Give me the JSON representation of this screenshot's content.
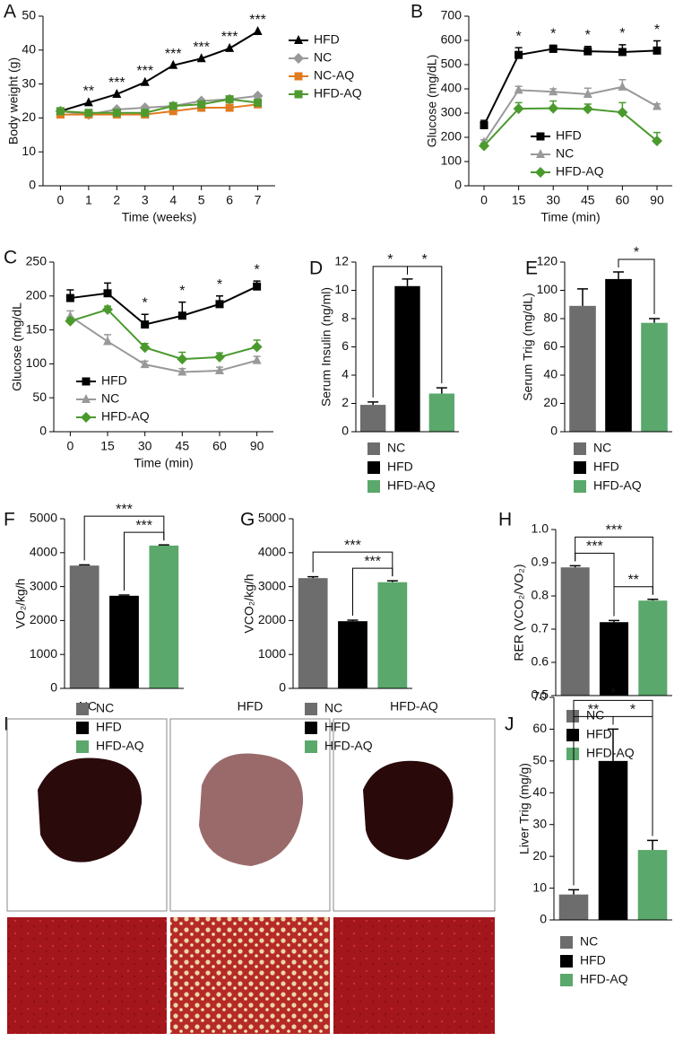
{
  "chart_data": [
    {
      "type": "line",
      "panel": "A",
      "x_label": "Time (weeks)",
      "y_label": "Body weight (g)",
      "categories": [
        "0",
        "1",
        "2",
        "3",
        "4",
        "5",
        "6",
        "7"
      ],
      "ylim": [
        0,
        50
      ],
      "yticks": [
        0,
        10,
        20,
        30,
        40,
        50
      ],
      "annotations": [
        null,
        "**",
        "***",
        "***",
        "***",
        "***",
        "***",
        "***"
      ],
      "series": [
        {
          "name": "HFD",
          "color": "#000000",
          "marker": "triangle",
          "values": [
            22,
            24.5,
            27,
            30.5,
            35.5,
            37.5,
            40.5,
            45.5
          ]
        },
        {
          "name": "NC",
          "color": "#999999",
          "marker": "diamond",
          "values": [
            22,
            21,
            22.5,
            23,
            23.5,
            25,
            25.5,
            26.5
          ]
        },
        {
          "name": "NC-AQ",
          "color": "#e07b20",
          "marker": "square",
          "values": [
            21,
            21,
            21,
            21,
            22,
            23,
            23,
            24
          ]
        },
        {
          "name": "HFD-AQ",
          "color": "#4e9a2e",
          "marker": "square",
          "values": [
            22,
            21.5,
            21.5,
            21.5,
            23.5,
            24,
            25.5,
            24.5
          ]
        }
      ]
    },
    {
      "type": "line",
      "panel": "B",
      "x_label": "Time (min)",
      "y_label": "Glucose (mg/dL)",
      "categories": [
        "0",
        "15",
        "30",
        "45",
        "60",
        "90"
      ],
      "ylim": [
        0,
        700
      ],
      "yticks": [
        0,
        100,
        200,
        300,
        400,
        500,
        600,
        700
      ],
      "annotations": [
        null,
        "*",
        "*",
        "*",
        "*",
        "*"
      ],
      "series": [
        {
          "name": "HFD",
          "color": "#000000",
          "marker": "square",
          "values": [
            250,
            540,
            565,
            555,
            552,
            558
          ],
          "errors": [
            20,
            30,
            15,
            20,
            30,
            40
          ]
        },
        {
          "name": "NC",
          "color": "#999999",
          "marker": "triangle",
          "values": [
            180,
            395,
            388,
            378,
            408,
            328
          ],
          "errors": [
            10,
            15,
            12,
            25,
            30,
            10
          ]
        },
        {
          "name": "HFD-AQ",
          "color": "#4a9a2e",
          "marker": "diamond",
          "values": [
            165,
            318,
            320,
            317,
            303,
            185
          ],
          "errors": [
            10,
            25,
            30,
            20,
            40,
            35
          ]
        }
      ]
    },
    {
      "type": "line",
      "panel": "C",
      "x_label": "Time (min)",
      "y_label": "Glucose (mg/dL",
      "categories": [
        "0",
        "15",
        "30",
        "45",
        "60",
        "90"
      ],
      "ylim": [
        0,
        250
      ],
      "yticks": [
        0,
        50,
        100,
        150,
        200,
        250
      ],
      "annotations": [
        null,
        null,
        "*",
        "*",
        "*",
        "*"
      ],
      "series": [
        {
          "name": "HFD",
          "color": "#000000",
          "marker": "square",
          "values": [
            197,
            204,
            158,
            171,
            188,
            214
          ],
          "errors": [
            12,
            15,
            15,
            20,
            12,
            8
          ]
        },
        {
          "name": "NC",
          "color": "#999999",
          "marker": "triangle",
          "values": [
            170,
            133,
            99,
            88,
            90,
            105
          ],
          "errors": [
            8,
            10,
            5,
            5,
            5,
            6
          ]
        },
        {
          "name": "HFD-AQ",
          "color": "#4a9a2e",
          "marker": "diamond",
          "values": [
            163,
            180,
            124,
            107,
            110,
            125
          ],
          "errors": [
            5,
            5,
            6,
            10,
            6,
            10
          ]
        }
      ]
    },
    {
      "type": "bar",
      "panel": "D",
      "y_label": "Serum Insulin (ng/ml)",
      "categories": [
        "NC",
        "HFD",
        "HFD-AQ"
      ],
      "colors": [
        "#6d6d6d",
        "#000000",
        "#5aa86c"
      ],
      "values": [
        1.9,
        10.3,
        2.7
      ],
      "errors": [
        0.2,
        0.5,
        0.4
      ],
      "ylim": [
        0,
        12
      ],
      "yticks": [
        0,
        2,
        4,
        6,
        8,
        10,
        12
      ],
      "comparisons": [
        {
          "pair": [
            "NC",
            "HFD"
          ],
          "label": "*"
        },
        {
          "pair": [
            "HFD",
            "HFD-AQ"
          ],
          "label": "*"
        }
      ]
    },
    {
      "type": "bar",
      "panel": "E",
      "y_label": "Serum Trig (mg/dL)",
      "categories": [
        "NC",
        "HFD",
        "HFD-AQ"
      ],
      "colors": [
        "#6d6d6d",
        "#000000",
        "#5aa86c"
      ],
      "values": [
        89,
        108,
        77
      ],
      "errors": [
        12,
        5,
        3
      ],
      "ylim": [
        0,
        120
      ],
      "yticks": [
        0,
        20,
        40,
        60,
        80,
        100,
        120
      ],
      "comparisons": [
        {
          "pair": [
            "HFD",
            "HFD-AQ"
          ],
          "label": "*"
        }
      ]
    },
    {
      "type": "bar",
      "panel": "F",
      "y_label": "VO₂/kg/h",
      "categories": [
        "NC",
        "HFD",
        "HFD-AQ"
      ],
      "colors": [
        "#6d6d6d",
        "#000000",
        "#5aa86c"
      ],
      "values": [
        3620,
        2730,
        4210
      ],
      "errors": [
        20,
        20,
        20
      ],
      "ylim": [
        0,
        5000
      ],
      "yticks": [
        0,
        1000,
        2000,
        3000,
        4000,
        5000
      ],
      "comparisons": [
        {
          "pair": [
            "HFD",
            "HFD-AQ"
          ],
          "label": "***"
        },
        {
          "pair": [
            "NC",
            "HFD-AQ"
          ],
          "label": "***"
        }
      ]
    },
    {
      "type": "bar",
      "panel": "G",
      "y_label": "VCO₂/kg/h",
      "categories": [
        "NC",
        "HFD",
        "HFD-AQ"
      ],
      "colors": [
        "#6d6d6d",
        "#000000",
        "#5aa86c"
      ],
      "values": [
        3250,
        1980,
        3130
      ],
      "errors": [
        40,
        30,
        40
      ],
      "ylim": [
        0,
        5000
      ],
      "yticks": [
        0,
        1000,
        2000,
        3000,
        4000,
        5000
      ],
      "comparisons": [
        {
          "pair": [
            "HFD",
            "HFD-AQ"
          ],
          "label": "***"
        },
        {
          "pair": [
            "NC",
            "HFD-AQ"
          ],
          "label": "***"
        }
      ]
    },
    {
      "type": "bar",
      "panel": "H",
      "y_label": "RER (VCO₂/VO₂)",
      "categories": [
        "NC",
        "HFD",
        "HFD-AQ"
      ],
      "colors": [
        "#6d6d6d",
        "#000000",
        "#5aa86c"
      ],
      "values": [
        0.886,
        0.721,
        0.786
      ],
      "errors": [
        0.005,
        0.005,
        0.004
      ],
      "ylim": [
        0.5,
        1
      ],
      "yticks": [
        0.5,
        0.6,
        0.7,
        0.8,
        0.9,
        {
          "value": 1,
          "label": "1.0"
        }
      ],
      "comparisons": [
        {
          "pair": [
            "NC",
            "HFD"
          ],
          "label": "***"
        },
        {
          "pair": [
            "HFD",
            "HFD-AQ"
          ],
          "label": "**"
        },
        {
          "pair": [
            "NC",
            "HFD-AQ"
          ],
          "label": "***"
        }
      ]
    },
    {
      "type": "bar",
      "panel": "J",
      "y_label": "Liver Trig (mg/g)",
      "categories": [
        "NC",
        "HFD",
        "HFD-AQ"
      ],
      "colors": [
        "#6d6d6d",
        "#000000",
        "#5aa86c"
      ],
      "values": [
        8,
        50,
        22
      ],
      "errors": [
        1.5,
        10,
        3
      ],
      "ylim": [
        0,
        70
      ],
      "yticks": [
        0,
        10,
        20,
        30,
        40,
        50,
        60,
        70
      ],
      "comparisons": [
        {
          "pair": [
            "NC",
            "HFD"
          ],
          "label": "**"
        },
        {
          "pair": [
            "HFD",
            "HFD-AQ"
          ],
          "label": "*"
        },
        {
          "pair": [
            "NC",
            "HFD-AQ"
          ],
          "label": "*"
        }
      ]
    }
  ],
  "image_panel": {
    "panel": "I",
    "labels": [
      "NC",
      "HFD",
      "HFD-AQ"
    ]
  }
}
